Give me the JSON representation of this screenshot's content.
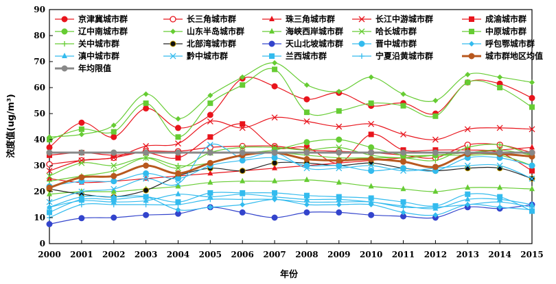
{
  "chart_data": {
    "type": "line",
    "xlabel": "年份",
    "ylabel": "浓度值(ug/m³)",
    "x": [
      2000,
      2001,
      2002,
      2003,
      2004,
      2005,
      2006,
      2007,
      2008,
      2009,
      2010,
      2011,
      2012,
      2013,
      2014,
      2015
    ],
    "xlim": [
      2000,
      2015
    ],
    "ylim": [
      0,
      90
    ],
    "yticks": [
      0,
      10,
      20,
      30,
      40,
      50,
      60,
      70,
      80,
      90
    ],
    "grid": false,
    "legend_position": "top",
    "series": [
      {
        "name": "京津冀城市群",
        "color": "#e8141c",
        "marker": "circle",
        "values": [
          37,
          46.5,
          41,
          52,
          44.5,
          49.5,
          63.5,
          60.5,
          55.5,
          58,
          53,
          54,
          50,
          62,
          61.5,
          56
        ]
      },
      {
        "name": "长三角城市群",
        "color": "#e8141c",
        "marker": "circle-open",
        "values": [
          30.5,
          32,
          33,
          35.5,
          35.5,
          37,
          37.5,
          37.5,
          36,
          35.5,
          35,
          34,
          33,
          38,
          38,
          35
        ]
      },
      {
        "name": "珠三角城市群",
        "color": "#e8141c",
        "marker": "triangle",
        "values": [
          25,
          23.5,
          24,
          25,
          26,
          27,
          28,
          29,
          30,
          31,
          32,
          33,
          34,
          35,
          36,
          37
        ]
      },
      {
        "name": "长江中游城市群",
        "color": "#e8141c",
        "marker": "x",
        "values": [
          28,
          32,
          33,
          37.5,
          38.5,
          47,
          44.5,
          48.5,
          47,
          45,
          46,
          42,
          40,
          44,
          44.5,
          44
        ]
      },
      {
        "name": "成渝城市群",
        "color": "#e8141c",
        "marker": "square",
        "values": [
          34,
          35,
          34,
          35,
          33,
          41,
          46,
          37,
          37,
          31,
          42,
          36,
          36,
          36,
          35,
          28
        ]
      },
      {
        "name": "辽中南城市群",
        "color": "#66cc33",
        "marker": "circle",
        "values": [
          35,
          35,
          35,
          35,
          35,
          35,
          35,
          36,
          39,
          40,
          37,
          34,
          34,
          34,
          34,
          30
        ]
      },
      {
        "name": "山东半岛城市群",
        "color": "#66cc33",
        "marker": "diamond",
        "values": [
          41,
          42,
          45.5,
          57.5,
          48,
          57,
          64,
          69.5,
          61,
          58.5,
          64,
          57.5,
          55,
          65,
          64,
          62
        ]
      },
      {
        "name": "海峡西岸城市群",
        "color": "#66cc33",
        "marker": "triangle",
        "values": [
          19,
          20,
          20,
          21,
          22,
          23.5,
          24,
          24,
          24.5,
          23.5,
          22,
          21,
          20,
          21.5,
          21.5,
          21
        ]
      },
      {
        "name": "哈长城市群",
        "color": "#66cc33",
        "marker": "x",
        "values": [
          26,
          31,
          30,
          33,
          29,
          35,
          37,
          37,
          36,
          37,
          34,
          33,
          34,
          35,
          36,
          34
        ]
      },
      {
        "name": "中原城市群",
        "color": "#66cc33",
        "marker": "square",
        "values": [
          40,
          44,
          43,
          54,
          41,
          54,
          61,
          67,
          50.5,
          51,
          54,
          53,
          49,
          62,
          60,
          52.5
        ]
      },
      {
        "name": "关中城市群",
        "color": "#66cc33",
        "marker": "plus",
        "values": [
          24,
          26,
          28,
          33,
          30,
          31,
          34,
          35,
          34,
          33,
          33,
          33,
          32,
          37,
          38,
          34
        ]
      },
      {
        "name": "北部湾城市群",
        "color": "#222222",
        "marker": "circle-dark",
        "values": [
          21,
          19,
          18,
          20.5,
          26,
          29,
          28,
          31,
          31,
          30,
          31,
          29,
          28,
          29,
          29,
          25
        ]
      },
      {
        "name": "天山北坡城市群",
        "color": "#3344cc",
        "marker": "circle",
        "values": [
          7.5,
          9.8,
          10,
          11,
          11.5,
          14,
          12,
          10,
          12,
          12,
          11,
          10.5,
          10,
          14,
          13.5,
          15
        ]
      },
      {
        "name": "晋中城市群",
        "color": "#33bbee",
        "marker": "circle",
        "values": [
          22,
          24,
          24,
          27,
          25,
          30,
          32,
          33,
          30,
          30,
          28,
          29,
          28,
          33,
          33,
          30
        ]
      },
      {
        "name": "呼包鄂城市群",
        "color": "#33bbee",
        "marker": "diamond",
        "values": [
          14,
          18,
          18,
          18,
          13,
          14,
          15,
          17,
          15,
          15,
          15,
          12,
          11,
          15,
          14,
          13
        ]
      },
      {
        "name": "滇中城市群",
        "color": "#33bbee",
        "marker": "triangle",
        "values": [
          14,
          16.5,
          16,
          16.5,
          19,
          18,
          19,
          18,
          17,
          17,
          16,
          14.5,
          13.5,
          17,
          17,
          15
        ]
      },
      {
        "name": "黔中城市群",
        "color": "#33bbee",
        "marker": "x",
        "values": [
          16,
          20,
          21,
          25,
          23,
          38,
          33,
          35,
          29,
          29,
          30,
          28,
          29,
          30,
          30,
          25
        ]
      },
      {
        "name": "兰西城市群",
        "color": "#33bbee",
        "marker": "square",
        "values": [
          12,
          17,
          17,
          18,
          16,
          19.5,
          19.5,
          19.5,
          18.5,
          18,
          17.5,
          16,
          14.5,
          19,
          18,
          12.5
        ]
      },
      {
        "name": "宁夏沿黄城市群",
        "color": "#33bbee",
        "marker": "plus",
        "values": [
          10,
          15,
          15,
          15,
          15,
          17,
          17,
          17,
          16,
          16,
          16,
          14,
          14,
          15,
          16,
          14
        ]
      },
      {
        "name": "城市群地区均值",
        "color": "#b8581e",
        "marker": "circle",
        "thick": true,
        "values": [
          21.5,
          25.5,
          26,
          30,
          27,
          31,
          34,
          35,
          32.5,
          32,
          32.5,
          31.5,
          29.5,
          34.5,
          34.5,
          33.5
        ]
      },
      {
        "name": "年均限值",
        "color": "#888888",
        "marker": "circle",
        "thick": true,
        "values": [
          35,
          35,
          35,
          35,
          35,
          35,
          35,
          35,
          35,
          35,
          35,
          35,
          35,
          35,
          35,
          35
        ]
      }
    ]
  }
}
